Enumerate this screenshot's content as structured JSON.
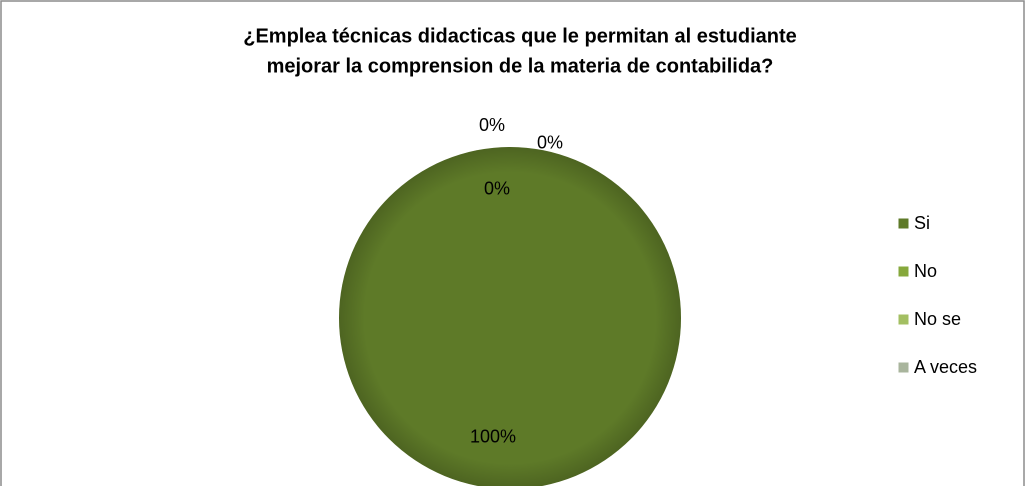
{
  "chart_data": {
    "type": "pie",
    "title": [
      "¿Emplea técnicas didacticas que le permitan al estudiante",
      "mejorar la comprension de la materia de contabilida?"
    ],
    "categories": [
      "Si",
      "No",
      "No se",
      "A veces"
    ],
    "values": [
      100,
      0,
      0,
      0
    ],
    "value_labels": [
      "100%",
      "0%",
      "0%",
      "0%"
    ],
    "colors": [
      "#5e7a28",
      "#86a83c",
      "#a3bf62",
      "#a9b59d"
    ],
    "legend": "right"
  }
}
